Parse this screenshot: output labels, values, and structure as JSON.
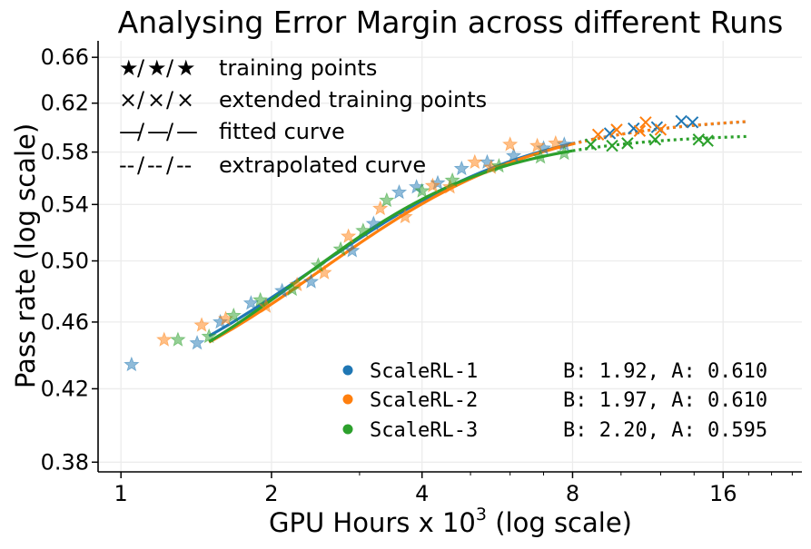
{
  "chart_data": {
    "type": "scatter",
    "title": "Analysing Error Margin across different Runs",
    "xlabel_main": "GPU Hours x 10",
    "xlabel_exp": "3",
    "xlabel_tail": " (log scale)",
    "ylabel": "Pass rate (log scale)",
    "x_scale": "log",
    "y_scale": "log",
    "xlim": [
      0.9,
      23
    ],
    "ylim": [
      0.375,
      0.675
    ],
    "x_ticks": [
      {
        "value": 1,
        "label": "1"
      },
      {
        "value": 2,
        "label": "2"
      },
      {
        "value": 4,
        "label": "4"
      },
      {
        "value": 8,
        "label": "8"
      },
      {
        "value": 16,
        "label": "16"
      }
    ],
    "y_ticks": [
      {
        "value": 0.38,
        "label": "0.38"
      },
      {
        "value": 0.42,
        "label": "0.42"
      },
      {
        "value": 0.46,
        "label": "0.46"
      },
      {
        "value": 0.5,
        "label": "0.50"
      },
      {
        "value": 0.54,
        "label": "0.54"
      },
      {
        "value": 0.58,
        "label": "0.58"
      },
      {
        "value": 0.62,
        "label": "0.62"
      },
      {
        "value": 0.66,
        "label": "0.66"
      }
    ],
    "legend_markers": [
      {
        "symbols": [
          "★",
          "/",
          "★",
          "/",
          "★"
        ],
        "label": "training points"
      },
      {
        "symbols": [
          "×",
          "/",
          "×",
          "/",
          "×"
        ],
        "label": "extended training points"
      },
      {
        "symbols": [
          "—",
          "/",
          "—",
          "/",
          "—"
        ],
        "label": "fitted curve"
      },
      {
        "symbols": [
          "--",
          "/",
          "--",
          "/",
          "--"
        ],
        "label": "extrapolated curve"
      }
    ],
    "series": [
      {
        "name": "ScaleRL-1",
        "color": "#1f77b4",
        "params": "B: 1.92, A: 0.610",
        "curve": {
          "A": 0.61,
          "B": 1.92,
          "C": 2.7
        },
        "fit_x": [
          1.5,
          8.0
        ],
        "extrap_x": [
          8.0,
          18.0
        ],
        "training_points": [
          {
            "x": 1.05,
            "y": 0.434
          },
          {
            "x": 1.42,
            "y": 0.447
          },
          {
            "x": 1.58,
            "y": 0.46
          },
          {
            "x": 1.82,
            "y": 0.472
          },
          {
            "x": 2.1,
            "y": 0.48
          },
          {
            "x": 2.4,
            "y": 0.486
          },
          {
            "x": 2.9,
            "y": 0.507
          },
          {
            "x": 3.2,
            "y": 0.526
          },
          {
            "x": 3.6,
            "y": 0.549
          },
          {
            "x": 3.9,
            "y": 0.553
          },
          {
            "x": 4.3,
            "y": 0.556
          },
          {
            "x": 4.8,
            "y": 0.567
          },
          {
            "x": 5.4,
            "y": 0.572
          },
          {
            "x": 6.1,
            "y": 0.577
          },
          {
            "x": 7.0,
            "y": 0.583
          },
          {
            "x": 7.7,
            "y": 0.586
          }
        ],
        "extended_points": [
          {
            "x": 9.5,
            "y": 0.595
          },
          {
            "x": 10.6,
            "y": 0.599
          },
          {
            "x": 11.8,
            "y": 0.6
          },
          {
            "x": 13.2,
            "y": 0.605
          },
          {
            "x": 13.9,
            "y": 0.604
          }
        ]
      },
      {
        "name": "ScaleRL-2",
        "color": "#ff7f0e",
        "params": "B: 1.97, A: 0.610",
        "curve": {
          "A": 0.61,
          "B": 1.97,
          "C": 2.8
        },
        "fit_x": [
          1.5,
          8.0
        ],
        "extrap_x": [
          8.0,
          18.0
        ],
        "training_points": [
          {
            "x": 1.22,
            "y": 0.449
          },
          {
            "x": 1.45,
            "y": 0.458
          },
          {
            "x": 1.62,
            "y": 0.462
          },
          {
            "x": 1.95,
            "y": 0.47
          },
          {
            "x": 2.25,
            "y": 0.484
          },
          {
            "x": 2.55,
            "y": 0.492
          },
          {
            "x": 2.85,
            "y": 0.517
          },
          {
            "x": 3.3,
            "y": 0.537
          },
          {
            "x": 3.7,
            "y": 0.531
          },
          {
            "x": 4.2,
            "y": 0.554
          },
          {
            "x": 4.55,
            "y": 0.553
          },
          {
            "x": 5.1,
            "y": 0.572
          },
          {
            "x": 5.5,
            "y": 0.568
          },
          {
            "x": 6.0,
            "y": 0.586
          },
          {
            "x": 6.8,
            "y": 0.585
          },
          {
            "x": 7.4,
            "y": 0.587
          }
        ],
        "extended_points": [
          {
            "x": 9.0,
            "y": 0.594
          },
          {
            "x": 9.8,
            "y": 0.598
          },
          {
            "x": 10.9,
            "y": 0.597
          },
          {
            "x": 11.2,
            "y": 0.604
          },
          {
            "x": 12.0,
            "y": 0.598
          }
        ]
      },
      {
        "name": "ScaleRL-3",
        "color": "#2ca02c",
        "params": "B: 2.20, A: 0.595",
        "curve": {
          "A": 0.595,
          "B": 2.2,
          "C": 2.5
        },
        "fit_x": [
          1.5,
          8.0
        ],
        "extrap_x": [
          8.0,
          18.0
        ],
        "training_points": [
          {
            "x": 1.3,
            "y": 0.449
          },
          {
            "x": 1.5,
            "y": 0.451
          },
          {
            "x": 1.68,
            "y": 0.464
          },
          {
            "x": 1.9,
            "y": 0.474
          },
          {
            "x": 2.2,
            "y": 0.481
          },
          {
            "x": 2.48,
            "y": 0.497
          },
          {
            "x": 2.75,
            "y": 0.508
          },
          {
            "x": 3.05,
            "y": 0.521
          },
          {
            "x": 3.4,
            "y": 0.543
          },
          {
            "x": 4.0,
            "y": 0.55
          },
          {
            "x": 4.6,
            "y": 0.558
          },
          {
            "x": 5.7,
            "y": 0.569
          },
          {
            "x": 6.9,
            "y": 0.576
          },
          {
            "x": 7.7,
            "y": 0.579
          }
        ],
        "extended_points": [
          {
            "x": 8.7,
            "y": 0.586
          },
          {
            "x": 9.6,
            "y": 0.585
          },
          {
            "x": 10.3,
            "y": 0.587
          },
          {
            "x": 11.7,
            "y": 0.59
          },
          {
            "x": 14.3,
            "y": 0.59
          },
          {
            "x": 14.9,
            "y": 0.589
          }
        ]
      }
    ]
  }
}
